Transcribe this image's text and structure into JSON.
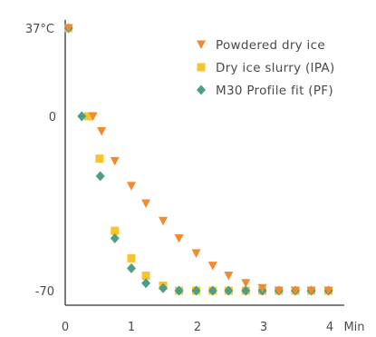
{
  "chart_data": {
    "type": "scatter",
    "x_unit": "Min",
    "x_ticks": [
      0,
      1,
      2,
      3,
      4
    ],
    "y_ticks": [
      {
        "value": 37,
        "label": "37°C"
      },
      {
        "value": 0,
        "label": "0"
      },
      {
        "value": -70,
        "label": "-70"
      }
    ],
    "xlim": [
      0,
      4.2
    ],
    "ylim": [
      -70,
      37
    ],
    "grid": false,
    "legend_position": "top-right",
    "series": [
      {
        "name": "Powdered dry ice",
        "marker": "triangle-down",
        "color": "#F28A2E",
        "x": [
          0.05,
          0.42,
          0.55,
          0.75,
          1.0,
          1.22,
          1.48,
          1.72,
          1.98,
          2.23,
          2.47,
          2.73,
          2.98,
          3.23,
          3.48,
          3.72,
          3.98
        ],
        "y": [
          37,
          0,
          -6,
          -18,
          -28,
          -35,
          -42,
          -49,
          -55,
          -60,
          -64,
          -67,
          -69,
          -70,
          -70,
          -70,
          -70
        ]
      },
      {
        "name": "Dry ice slurry (IPA)",
        "marker": "square",
        "color": "#F5C42E",
        "x": [
          0.05,
          0.35,
          0.52,
          0.75,
          1.0,
          1.22,
          1.48,
          1.72,
          1.98,
          2.23,
          2.47,
          2.73,
          2.98,
          3.23,
          3.48,
          3.72,
          3.98
        ],
        "y": [
          37,
          0,
          -17,
          -46,
          -57,
          -64,
          -68,
          -70,
          -70,
          -70,
          -70,
          -70,
          -70,
          -70,
          -70,
          -70,
          -70
        ]
      },
      {
        "name": "M30 Profile fit (PF)",
        "marker": "diamond",
        "color": "#4E9E86",
        "x": [
          0.05,
          0.25,
          0.53,
          0.75,
          1.0,
          1.22,
          1.48,
          1.72,
          1.98,
          2.23,
          2.47,
          2.73,
          2.98,
          3.23,
          3.48,
          3.72,
          3.98
        ],
        "y": [
          37,
          0,
          -24,
          -49,
          -61,
          -67,
          -69,
          -70,
          -70,
          -70,
          -70,
          -70,
          -70,
          -70,
          -70,
          -70,
          -70
        ]
      }
    ]
  }
}
